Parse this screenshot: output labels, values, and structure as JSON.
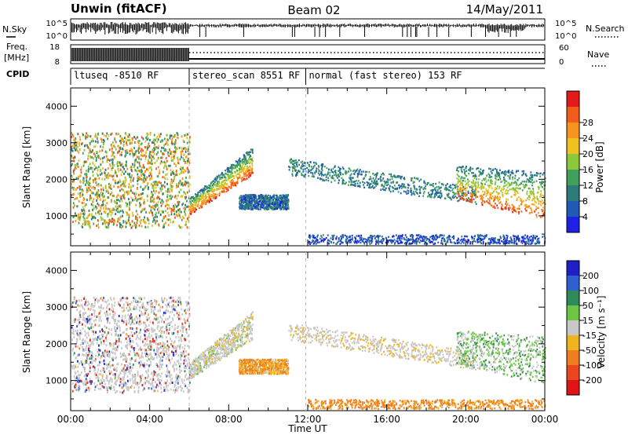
{
  "header": {
    "station": "Unwin (fitACF)",
    "beam": "Beam 02",
    "date": "14/May/2011"
  },
  "left_labels": {
    "nsky": "N.Sky",
    "freq_line1": "Freq.",
    "freq_line2": "[MHz]",
    "cpid": "CPID"
  },
  "right_labels": {
    "nsearch": "N.Search",
    "nave": "Nave"
  },
  "strip_ticks": {
    "noise_left_top": "10^5",
    "noise_left_bottom": "10^0",
    "noise_right_top": "10^5",
    "noise_right_bottom": "10^0",
    "freq_left_top": "18",
    "freq_left_bottom": "8",
    "nave_right_top": "60",
    "nave_right_bottom": "0"
  },
  "cpid_segments": [
    {
      "label": "ltuseq -8510 RF",
      "start_h": 0,
      "end_h": 6
    },
    {
      "label": "stereo_scan 8551 RF",
      "start_h": 6,
      "end_h": 11.9
    },
    {
      "label": "normal (fast stereo) 153 RF",
      "start_h": 11.9,
      "end_h": 24
    }
  ],
  "axes": {
    "ylabel": "Slant Range [km]",
    "yticks": [
      "1000",
      "2000",
      "3000",
      "4000"
    ],
    "xlabel": "Time UT",
    "xticks": [
      "00:00",
      "04:00",
      "08:00",
      "12:00",
      "16:00",
      "20:00",
      "00:00"
    ]
  },
  "power_scale": {
    "label": "Power [dB]",
    "ticks": [
      "4",
      "8",
      "12",
      "16",
      "20",
      "24",
      "28"
    ],
    "colors": [
      "#1f1fe6",
      "#1f5ab4",
      "#2d7a7a",
      "#3ea05a",
      "#8cc83c",
      "#f0c020",
      "#f7941d",
      "#f25c1a",
      "#e31a1c"
    ]
  },
  "velocity_scale": {
    "label": "Velocity [m s⁻¹]",
    "ticks": [
      "200",
      "100",
      "50",
      "15",
      "-15",
      "-50",
      "-100",
      "-200"
    ],
    "colors": [
      "#1f1fc8",
      "#2f5fd0",
      "#2e8b57",
      "#6cc644",
      "#c8c8c8",
      "#f0b41e",
      "#f07d1e",
      "#eb461e",
      "#e01414"
    ]
  },
  "chart_data": {
    "type": "heatmap",
    "title": "Beam 02",
    "xlabel": "Time UT",
    "ylabel": "Slant Range [km]",
    "xlim_hours": [
      0,
      24
    ],
    "ylim_km": [
      180,
      4500
    ],
    "power_db_range": [
      3,
      30
    ],
    "velocity_range": [
      -200,
      200
    ],
    "echo_regions": [
      {
        "name": "ltuseq",
        "t_start": 0.0,
        "t_end": 6.0,
        "range_km": [
          700,
          3300
        ],
        "power_db": 16,
        "velocity": "mixed"
      },
      {
        "name": "evening_band",
        "t_start": 6.0,
        "t_end": 9.2,
        "range_km": [
          1050,
          2900
        ],
        "power_db": 22,
        "velocity": 0
      },
      {
        "name": "midday_strip",
        "t_start": 8.5,
        "t_end": 11.0,
        "range_km": [
          1200,
          1600
        ],
        "power_db": 8,
        "velocity": -30
      },
      {
        "name": "daytime_band",
        "t_start": 11.0,
        "t_end": 20.5,
        "range_km": [
          1700,
          2700
        ],
        "power_db": 10,
        "velocity": -5
      },
      {
        "name": "dawn_band",
        "t_start": 19.5,
        "t_end": 24.0,
        "range_km": [
          900,
          2500
        ],
        "power_db": 20,
        "velocity": 20
      },
      {
        "name": "near_range",
        "t_start": 12.0,
        "t_end": 24.0,
        "range_km": [
          250,
          500
        ],
        "power_db": 6,
        "velocity": -40
      }
    ]
  }
}
